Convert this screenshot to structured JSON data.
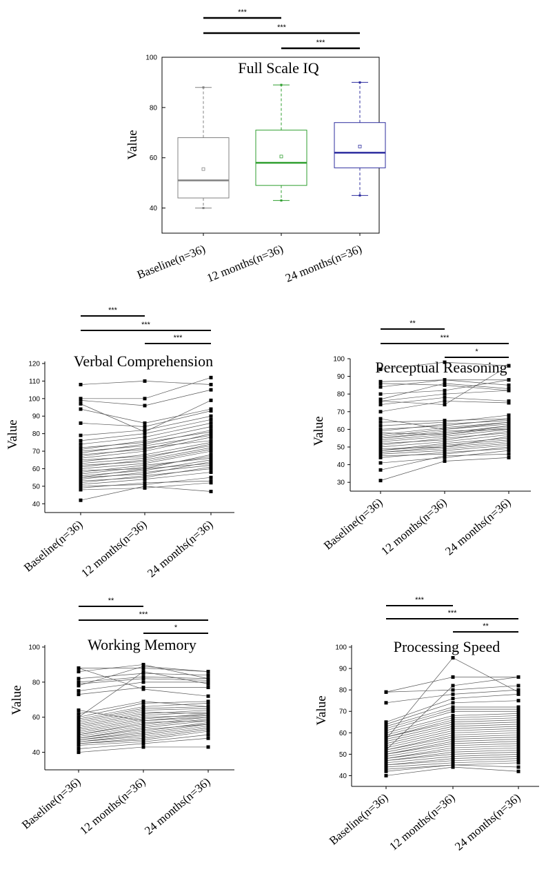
{
  "chart_data": [
    {
      "type": "box",
      "title": "Full Scale IQ",
      "ylabel": "Value",
      "ylim": [
        30,
        100
      ],
      "yticks": [
        40,
        60,
        80,
        100
      ],
      "categories": [
        "Baseline(n=36)",
        "12 months(n=36)",
        "24 months(n=36)"
      ],
      "colors": [
        "#808080",
        "#2e9e2e",
        "#2b2b9e"
      ],
      "boxes": [
        {
          "min": 40,
          "q1": 44,
          "median": 51,
          "q3": 68,
          "max": 88,
          "mean": 55.5
        },
        {
          "min": 43,
          "q1": 49,
          "median": 58,
          "q3": 71,
          "max": 89,
          "mean": 60.5
        },
        {
          "min": 45,
          "q1": 56,
          "median": 62,
          "q3": 74,
          "max": 90,
          "mean": 64.5
        }
      ],
      "significance": [
        {
          "from": 0,
          "to": 1,
          "label": "***"
        },
        {
          "from": 0,
          "to": 2,
          "label": "***"
        },
        {
          "from": 1,
          "to": 2,
          "label": "***"
        }
      ]
    },
    {
      "type": "line",
      "title": "Verbal Comprehension",
      "ylabel": "Value",
      "ylim": [
        35,
        120
      ],
      "yticks": [
        40,
        50,
        60,
        70,
        80,
        90,
        100,
        110,
        120
      ],
      "categories": [
        "Baseline(n=36)",
        "12 months(n=36)",
        "24 months(n=36)"
      ],
      "significance": [
        {
          "from": 0,
          "to": 1,
          "label": "***"
        },
        {
          "from": 0,
          "to": 2,
          "label": "***"
        },
        {
          "from": 1,
          "to": 2,
          "label": "***"
        }
      ],
      "subjects": [
        [
          42,
          50,
          47
        ],
        [
          48,
          49,
          52
        ],
        [
          49,
          52,
          53
        ],
        [
          50,
          51,
          55
        ],
        [
          51,
          54,
          58
        ],
        [
          52,
          56,
          60
        ],
        [
          53,
          55,
          61
        ],
        [
          54,
          58,
          62
        ],
        [
          55,
          57,
          64
        ],
        [
          55,
          60,
          63
        ],
        [
          56,
          59,
          65
        ],
        [
          57,
          61,
          67
        ],
        [
          58,
          62,
          66
        ],
        [
          59,
          60,
          68
        ],
        [
          60,
          63,
          70
        ],
        [
          61,
          65,
          72
        ],
        [
          62,
          64,
          71
        ],
        [
          63,
          66,
          74
        ],
        [
          64,
          68,
          75
        ],
        [
          65,
          67,
          73
        ],
        [
          66,
          70,
          78
        ],
        [
          67,
          72,
          76
        ],
        [
          68,
          71,
          80
        ],
        [
          69,
          74,
          82
        ],
        [
          70,
          73,
          79
        ],
        [
          71,
          76,
          84
        ],
        [
          72,
          75,
          81
        ],
        [
          74,
          78,
          86
        ],
        [
          76,
          80,
          88
        ],
        [
          79,
          82,
          90
        ],
        [
          86,
          84,
          93
        ],
        [
          94,
          86,
          94
        ],
        [
          97,
          81,
          99
        ],
        [
          99,
          96,
          105
        ],
        [
          100,
          100,
          112
        ],
        [
          108,
          110,
          108
        ]
      ]
    },
    {
      "type": "line",
      "title": "Perceptual Reasoning",
      "ylabel": "Value",
      "ylim": [
        25,
        100
      ],
      "yticks": [
        30,
        40,
        50,
        60,
        70,
        80,
        90,
        100
      ],
      "categories": [
        "Baseline(n=36)",
        "12 months(n=36)",
        "24 months(n=36)"
      ],
      "significance": [
        {
          "from": 0,
          "to": 1,
          "label": "**"
        },
        {
          "from": 0,
          "to": 2,
          "label": "***"
        },
        {
          "from": 1,
          "to": 2,
          "label": "*"
        }
      ],
      "subjects": [
        [
          31,
          42,
          44
        ],
        [
          37,
          45,
          46
        ],
        [
          41,
          44,
          48
        ],
        [
          44,
          47,
          49
        ],
        [
          45,
          46,
          50
        ],
        [
          46,
          48,
          51
        ],
        [
          47,
          49,
          52
        ],
        [
          47,
          50,
          53
        ],
        [
          48,
          51,
          54
        ],
        [
          48,
          52,
          55
        ],
        [
          49,
          50,
          56
        ],
        [
          50,
          53,
          57
        ],
        [
          51,
          55,
          58
        ],
        [
          52,
          54,
          59
        ],
        [
          53,
          56,
          60
        ],
        [
          54,
          57,
          61
        ],
        [
          55,
          58,
          62
        ],
        [
          55,
          59,
          60
        ],
        [
          56,
          60,
          63
        ],
        [
          57,
          61,
          64
        ],
        [
          58,
          57,
          62
        ],
        [
          59,
          63,
          65
        ],
        [
          60,
          62,
          66
        ],
        [
          62,
          64,
          68
        ],
        [
          64,
          65,
          66
        ],
        [
          66,
          60,
          64
        ],
        [
          70,
          76,
          75
        ],
        [
          74,
          78,
          76
        ],
        [
          76,
          80,
          82
        ],
        [
          77,
          86,
          83
        ],
        [
          80,
          82,
          88
        ],
        [
          84,
          88,
          85
        ],
        [
          86,
          85,
          82
        ],
        [
          87,
          88,
          88
        ],
        [
          94,
          98,
          96
        ],
        [
          76,
          74,
          96
        ]
      ]
    },
    {
      "type": "line",
      "title": "Working Memory",
      "ylabel": "Value",
      "ylim": [
        30,
        100
      ],
      "yticks": [
        40,
        60,
        80,
        100
      ],
      "categories": [
        "Baseline(n=36)",
        "12 months(n=36)",
        "24 months(n=36)"
      ],
      "significance": [
        {
          "from": 0,
          "to": 1,
          "label": "**"
        },
        {
          "from": 0,
          "to": 2,
          "label": "***"
        },
        {
          "from": 1,
          "to": 2,
          "label": "*"
        }
      ],
      "subjects": [
        [
          40,
          43,
          43
        ],
        [
          42,
          45,
          48
        ],
        [
          44,
          46,
          50
        ],
        [
          45,
          47,
          52
        ],
        [
          45,
          48,
          53
        ],
        [
          46,
          49,
          54
        ],
        [
          46,
          50,
          55
        ],
        [
          47,
          51,
          56
        ],
        [
          47,
          52,
          57
        ],
        [
          48,
          53,
          56
        ],
        [
          48,
          54,
          58
        ],
        [
          49,
          55,
          59
        ],
        [
          50,
          56,
          60
        ],
        [
          50,
          57,
          58
        ],
        [
          51,
          58,
          61
        ],
        [
          52,
          59,
          62
        ],
        [
          53,
          60,
          61
        ],
        [
          54,
          61,
          63
        ],
        [
          55,
          62,
          64
        ],
        [
          56,
          63,
          62
        ],
        [
          57,
          64,
          65
        ],
        [
          58,
          65,
          66
        ],
        [
          59,
          66,
          68
        ],
        [
          60,
          68,
          69
        ],
        [
          62,
          69,
          66
        ],
        [
          64,
          58,
          60
        ],
        [
          73,
          77,
          77
        ],
        [
          75,
          80,
          80
        ],
        [
          79,
          82,
          81
        ],
        [
          80,
          83,
          82
        ],
        [
          82,
          85,
          84
        ],
        [
          88,
          88,
          86
        ],
        [
          86,
          90,
          82
        ],
        [
          78,
          89,
          86
        ],
        [
          88,
          76,
          72
        ],
        [
          60,
          86,
          79
        ]
      ]
    },
    {
      "type": "line",
      "title": "Processing Speed",
      "ylabel": "Value",
      "ylim": [
        35,
        100
      ],
      "yticks": [
        40,
        50,
        60,
        70,
        80,
        90,
        100
      ],
      "categories": [
        "Baseline(n=36)",
        "12 months(n=36)",
        "24 months(n=36)"
      ],
      "significance": [
        {
          "from": 0,
          "to": 1,
          "label": "***"
        },
        {
          "from": 0,
          "to": 2,
          "label": "***"
        },
        {
          "from": 1,
          "to": 2,
          "label": "**"
        }
      ],
      "subjects": [
        [
          40,
          44,
          42
        ],
        [
          42,
          45,
          44
        ],
        [
          43,
          45,
          46
        ],
        [
          44,
          46,
          47
        ],
        [
          45,
          47,
          48
        ],
        [
          45,
          48,
          49
        ],
        [
          46,
          49,
          50
        ],
        [
          47,
          50,
          51
        ],
        [
          47,
          51,
          52
        ],
        [
          48,
          52,
          53
        ],
        [
          48,
          53,
          54
        ],
        [
          49,
          54,
          55
        ],
        [
          50,
          55,
          56
        ],
        [
          50,
          56,
          57
        ],
        [
          51,
          57,
          58
        ],
        [
          52,
          58,
          59
        ],
        [
          52,
          59,
          60
        ],
        [
          53,
          60,
          61
        ],
        [
          54,
          61,
          62
        ],
        [
          55,
          62,
          63
        ],
        [
          56,
          63,
          64
        ],
        [
          57,
          64,
          65
        ],
        [
          58,
          65,
          66
        ],
        [
          58,
          66,
          67
        ],
        [
          59,
          67,
          68
        ],
        [
          60,
          68,
          69
        ],
        [
          61,
          70,
          70
        ],
        [
          62,
          71,
          71
        ],
        [
          63,
          72,
          72
        ],
        [
          64,
          74,
          75
        ],
        [
          65,
          76,
          78
        ],
        [
          74,
          78,
          80
        ],
        [
          79,
          80,
          82
        ],
        [
          52,
          82,
          86
        ],
        [
          57,
          95,
          79
        ],
        [
          79,
          86,
          86
        ]
      ]
    }
  ]
}
